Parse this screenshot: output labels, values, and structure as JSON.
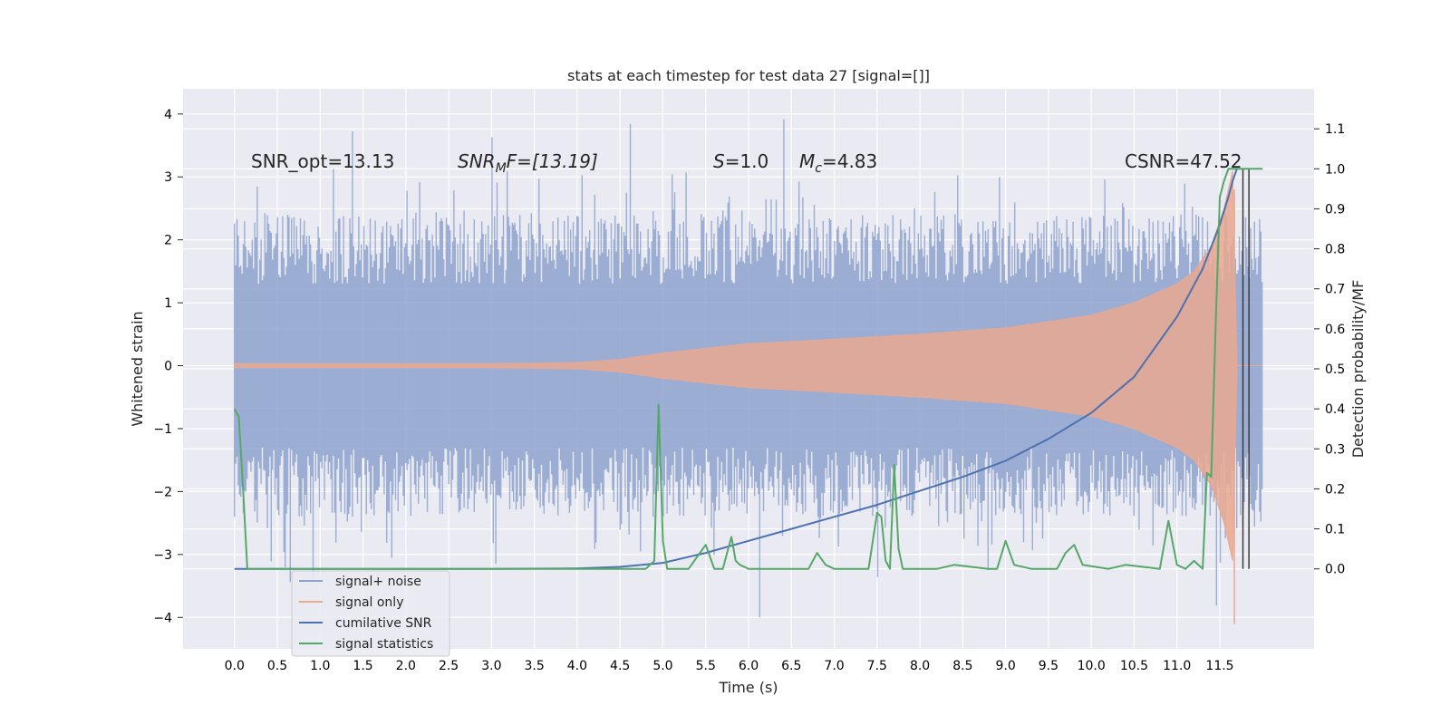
{
  "chart_data": {
    "type": "line",
    "title": "stats at each timestep for test data 27 [signal=[]]",
    "xlabel": "Time (s)",
    "ylabel_left": "Whitened strain",
    "ylabel_right": "Detection probability/MF",
    "xlim": [
      -0.6,
      12.6
    ],
    "ylim_left": [
      -4.5,
      4.4
    ],
    "ylim_right": [
      -0.2,
      1.2
    ],
    "x_ticks": [
      "0.0",
      "0.5",
      "1.0",
      "1.5",
      "2.0",
      "2.5",
      "3.0",
      "3.5",
      "4.0",
      "4.5",
      "5.0",
      "5.5",
      "6.0",
      "6.5",
      "7.0",
      "7.5",
      "8.0",
      "8.5",
      "9.0",
      "9.5",
      "10.0",
      "10.5",
      "11.0",
      "11.5"
    ],
    "y_ticks_left": [
      "4",
      "3",
      "2",
      "1",
      "0",
      "−1",
      "−2",
      "−3",
      "−4"
    ],
    "y_ticks_right": [
      "1.1",
      "1.0",
      "0.9",
      "0.8",
      "0.7",
      "0.6",
      "0.5",
      "0.4",
      "0.3",
      "0.2",
      "0.1",
      "0.0"
    ],
    "annotations": {
      "snr_opt": "SNR_opt=13.13",
      "snr_mf_label": "SNR",
      "snr_mf_sub": "M",
      "snr_mf_tail": "F=[13.19]",
      "s_label": "S",
      "s_value": "=1.0",
      "mc_label": "M",
      "mc_sub": "c",
      "mc_value": "=4.83",
      "csnr": "CSNR=47.52"
    },
    "legend": [
      {
        "label": "signal+ noise",
        "color": "#8ea2cf"
      },
      {
        "label": "signal only",
        "color": "#e9a890"
      },
      {
        "label": "cumilative SNR",
        "color": "#4c72b0"
      },
      {
        "label": "signal statistics",
        "color": "#55a868"
      }
    ],
    "series": [
      {
        "name": "cumilative SNR",
        "axis": "right",
        "color": "#4c72b0",
        "x": [
          0,
          1,
          2,
          3,
          4,
          4.5,
          5,
          5.5,
          6,
          6.5,
          7,
          7.5,
          8,
          8.5,
          9,
          9.5,
          10,
          10.5,
          11,
          11.3,
          11.5,
          11.6,
          11.65,
          11.7
        ],
        "y": [
          0,
          0,
          0,
          0,
          0.001,
          0.005,
          0.015,
          0.04,
          0.07,
          0.1,
          0.13,
          0.16,
          0.195,
          0.23,
          0.27,
          0.325,
          0.39,
          0.48,
          0.63,
          0.75,
          0.86,
          0.93,
          0.97,
          1.0
        ]
      },
      {
        "name": "signal statistics",
        "axis": "right",
        "color": "#55a868",
        "x": [
          0,
          0.05,
          0.1,
          0.15,
          0.2,
          0.3,
          1,
          2,
          3,
          4,
          4.8,
          4.9,
          4.95,
          5.0,
          5.05,
          5.1,
          5.3,
          5.5,
          5.6,
          5.7,
          5.8,
          5.85,
          5.9,
          6.0,
          6.3,
          6.7,
          6.8,
          6.9,
          7.0,
          7.4,
          7.5,
          7.55,
          7.6,
          7.65,
          7.7,
          7.75,
          7.8,
          7.9,
          8.1,
          8.2,
          8.4,
          8.8,
          8.9,
          9.0,
          9.1,
          9.3,
          9.6,
          9.7,
          9.8,
          9.9,
          10.2,
          10.4,
          10.8,
          10.9,
          11.0,
          11.1,
          11.2,
          11.3,
          11.35,
          11.4,
          11.45,
          11.5,
          11.55,
          11.6,
          11.65,
          11.7,
          11.75,
          11.8,
          11.9,
          12.0
        ],
        "y": [
          0.4,
          0.38,
          0.2,
          0.0,
          0.0,
          0.0,
          0.0,
          0.0,
          0.0,
          0.0,
          0.0,
          0.02,
          0.41,
          0.07,
          0.0,
          0.0,
          0.0,
          0.06,
          0.0,
          0.0,
          0.08,
          0.02,
          0.01,
          0.0,
          0.0,
          0.0,
          0.04,
          0.01,
          0.0,
          0.0,
          0.14,
          0.13,
          0.02,
          0.0,
          0.26,
          0.05,
          0.0,
          0.0,
          0.0,
          0.0,
          0.01,
          0.0,
          0.0,
          0.07,
          0.01,
          0.0,
          0.0,
          0.04,
          0.06,
          0.01,
          0.0,
          0.01,
          0.0,
          0.12,
          0.01,
          0.0,
          0.02,
          0.0,
          0.24,
          0.23,
          0.6,
          0.93,
          0.97,
          1.0,
          1.0,
          1.0,
          1.0,
          1.0,
          1.0,
          1.0
        ]
      },
      {
        "name": "signal only",
        "axis": "left",
        "color": "#e9a890",
        "envelope_x": [
          0,
          3,
          4,
          4.5,
          5,
          6,
          7,
          8,
          9,
          10,
          10.5,
          11,
          11.2,
          11.4,
          11.55,
          11.65,
          11.7,
          12.0
        ],
        "envelope_y": [
          0.03,
          0.03,
          0.05,
          0.1,
          0.2,
          0.35,
          0.42,
          0.5,
          0.6,
          0.8,
          1.0,
          1.3,
          1.5,
          1.9,
          2.5,
          3.1,
          0.0,
          0.0
        ]
      },
      {
        "name": "signal+ noise",
        "axis": "left",
        "color": "#8ea2cf",
        "base_envelope": 1.3,
        "extremes_note": "noise band mostly within about -2.3 to 2.3 with spikes to about -4.1 and 4.0"
      }
    ],
    "vertical_markers_x": [
      11.77,
      11.84
    ]
  }
}
